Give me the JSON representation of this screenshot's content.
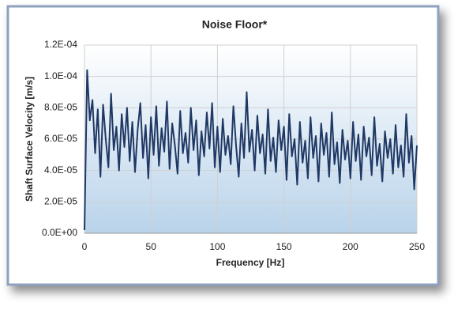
{
  "chart_data": {
    "type": "line",
    "title": "Noise Floor*",
    "x_label": "Frequency [Hz]",
    "y_label": "Shaft Surface Velocity [m/s]",
    "x": [
      0,
      2,
      4,
      6,
      8,
      10,
      12,
      14,
      16,
      18,
      20,
      22,
      24,
      26,
      28,
      30,
      32,
      34,
      36,
      38,
      40,
      42,
      44,
      46,
      48,
      50,
      52,
      54,
      56,
      58,
      60,
      62,
      64,
      66,
      68,
      70,
      72,
      74,
      76,
      78,
      80,
      82,
      84,
      86,
      88,
      90,
      92,
      94,
      96,
      98,
      100,
      102,
      104,
      106,
      108,
      110,
      112,
      114,
      116,
      118,
      120,
      122,
      124,
      126,
      128,
      130,
      132,
      134,
      136,
      138,
      140,
      142,
      144,
      146,
      148,
      150,
      152,
      154,
      156,
      158,
      160,
      162,
      164,
      166,
      168,
      170,
      172,
      174,
      176,
      178,
      180,
      182,
      184,
      186,
      188,
      190,
      192,
      194,
      196,
      198,
      200,
      202,
      204,
      206,
      208,
      210,
      212,
      214,
      216,
      218,
      220,
      222,
      224,
      226,
      228,
      230,
      232,
      234,
      236,
      238,
      240,
      242,
      244,
      246,
      248,
      250
    ],
    "series": [
      {
        "name": "Noise floor",
        "color": "#1f3864",
        "values": [
          2e-06,
          0.000104,
          7.2e-05,
          8.5e-05,
          5.1e-05,
          7.9e-05,
          3.6e-05,
          8.2e-05,
          6e-05,
          4.2e-05,
          8.9e-05,
          5.3e-05,
          6.8e-05,
          4e-05,
          7.6e-05,
          5.5e-05,
          8e-05,
          4.6e-05,
          7.1e-05,
          3.9e-05,
          6.6e-05,
          8.3e-05,
          4.8e-05,
          6.9e-05,
          3.5e-05,
          7.4e-05,
          5e-05,
          8.1e-05,
          4.3e-05,
          6.7e-05,
          5.2e-05,
          8.4e-05,
          4.1e-05,
          7e-05,
          5.6e-05,
          3.8e-05,
          7.8e-05,
          5.1e-05,
          6.4e-05,
          4.5e-05,
          8e-05,
          5.3e-05,
          7.2e-05,
          3.7e-05,
          6.5e-05,
          4.9e-05,
          7.7e-05,
          5.4e-05,
          8.3e-05,
          4.2e-05,
          6.8e-05,
          3.9e-05,
          7.3e-05,
          5e-05,
          6.2e-05,
          4.4e-05,
          8.1e-05,
          5.6e-05,
          3.6e-05,
          7e-05,
          4.8e-05,
          9e-05,
          5.2e-05,
          6.6e-05,
          4e-05,
          7.5e-05,
          5.1e-05,
          6.3e-05,
          3.8e-05,
          7.9e-05,
          4.6e-05,
          6.1e-05,
          3.9e-05,
          7.2e-05,
          5.3e-05,
          6.8e-05,
          3.4e-05,
          7.6e-05,
          4.9e-05,
          6e-05,
          3.1e-05,
          7.1e-05,
          4.5e-05,
          5.9e-05,
          3.5e-05,
          7.4e-05,
          4.8e-05,
          6.2e-05,
          3.3e-05,
          7e-05,
          5e-05,
          6.4e-05,
          3.6e-05,
          7.7e-05,
          4.4e-05,
          5.8e-05,
          3.2e-05,
          6.6e-05,
          4.7e-05,
          5.9e-05,
          3.5e-05,
          7.1e-05,
          4.6e-05,
          6.3e-05,
          3.4e-05,
          6.8e-05,
          4.9e-05,
          6.1e-05,
          3.7e-05,
          7.4e-05,
          4.3e-05,
          5.7e-05,
          3.3e-05,
          6.5e-05,
          4.8e-05,
          6e-05,
          3.8e-05,
          6.9e-05,
          4.2e-05,
          5.6e-05,
          3.6e-05,
          7.6e-05,
          4.5e-05,
          6.2e-05,
          2.8e-05,
          5.6e-05
        ]
      }
    ],
    "xlim": [
      0,
      250
    ],
    "xticks": [
      0,
      50,
      100,
      150,
      200,
      250
    ],
    "ylim": [
      0,
      0.00012
    ],
    "yticks": [
      {
        "value": 0,
        "label": "0.0E+00"
      },
      {
        "value": 2e-05,
        "label": "2.0E-05"
      },
      {
        "value": 4e-05,
        "label": "4.0E-05"
      },
      {
        "value": 6e-05,
        "label": "6.0E-05"
      },
      {
        "value": 8e-05,
        "label": "8.0E-05"
      },
      {
        "value": 0.0001,
        "label": "1.0E-04"
      },
      {
        "value": 0.00012,
        "label": "1.2E-04"
      }
    ],
    "grid": true
  }
}
